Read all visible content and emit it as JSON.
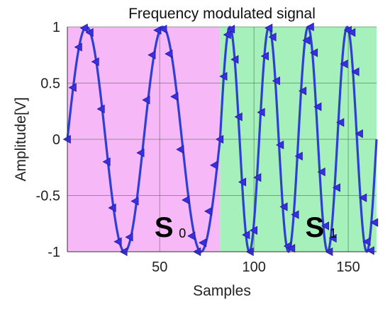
{
  "chart_data": {
    "type": "line",
    "title": "Frequency modulated signal",
    "xlabel": "Samples",
    "ylabel": "Amplitude[V]",
    "xlim": [
      1,
      165
    ],
    "ylim": [
      -1,
      1
    ],
    "xticks": [
      50,
      100,
      150
    ],
    "yticks": [
      1,
      0.5,
      0,
      -0.5,
      -1
    ],
    "ytick_labels": [
      "1",
      "0.5",
      "0",
      "-0.5",
      "-1"
    ],
    "grid": true,
    "marker": "triangle-left",
    "segments": [
      {
        "label": "S",
        "subscript": "0",
        "x_start": 1,
        "x_end": 82,
        "color": "#f7b8f7",
        "cycles": 2
      },
      {
        "label": "S",
        "subscript": "1",
        "x_start": 82,
        "x_end": 165,
        "color": "#a6f0bb",
        "cycles": 4
      }
    ],
    "series": [
      {
        "color": "#2f3fd6",
        "x": [
          1,
          4,
          7,
          10,
          13,
          16,
          19,
          22,
          25,
          28,
          31,
          34,
          37,
          40,
          43,
          46,
          49,
          52,
          55,
          58,
          61,
          64,
          67,
          70,
          73,
          76,
          79,
          82,
          84,
          86,
          88,
          90,
          92,
          94,
          96,
          98,
          100,
          102,
          104,
          106,
          108,
          110,
          112,
          114,
          116,
          118,
          120,
          122,
          124,
          126,
          128,
          130,
          132,
          134,
          136,
          138,
          140,
          142,
          144,
          146,
          148,
          150,
          152,
          154,
          156,
          158,
          160,
          162,
          164
        ],
        "y": [
          0,
          0.46,
          0.82,
          0.99,
          0.95,
          0.69,
          0.27,
          -0.2,
          -0.61,
          -0.91,
          -1,
          -0.87,
          -0.55,
          -0.12,
          0.35,
          0.75,
          0.97,
          0.98,
          0.76,
          0.38,
          -0.09,
          -0.54,
          -0.86,
          -1,
          -0.92,
          -0.64,
          -0.23,
          0,
          0.56,
          0.93,
          0.98,
          0.71,
          0.2,
          -0.38,
          -0.85,
          -1,
          -0.81,
          -0.34,
          0.24,
          0.74,
          0.99,
          0.91,
          0.52,
          -0.05,
          -0.6,
          -0.95,
          -0.97,
          -0.67,
          -0.15,
          0.43,
          0.88,
          1,
          0.77,
          0.29,
          -0.29,
          -0.77,
          -1,
          -0.88,
          -0.43,
          0.15,
          0.67,
          0.97,
          0.95,
          0.6,
          0.05,
          -0.52,
          -0.91,
          -0.99,
          -0.74
        ]
      }
    ]
  }
}
